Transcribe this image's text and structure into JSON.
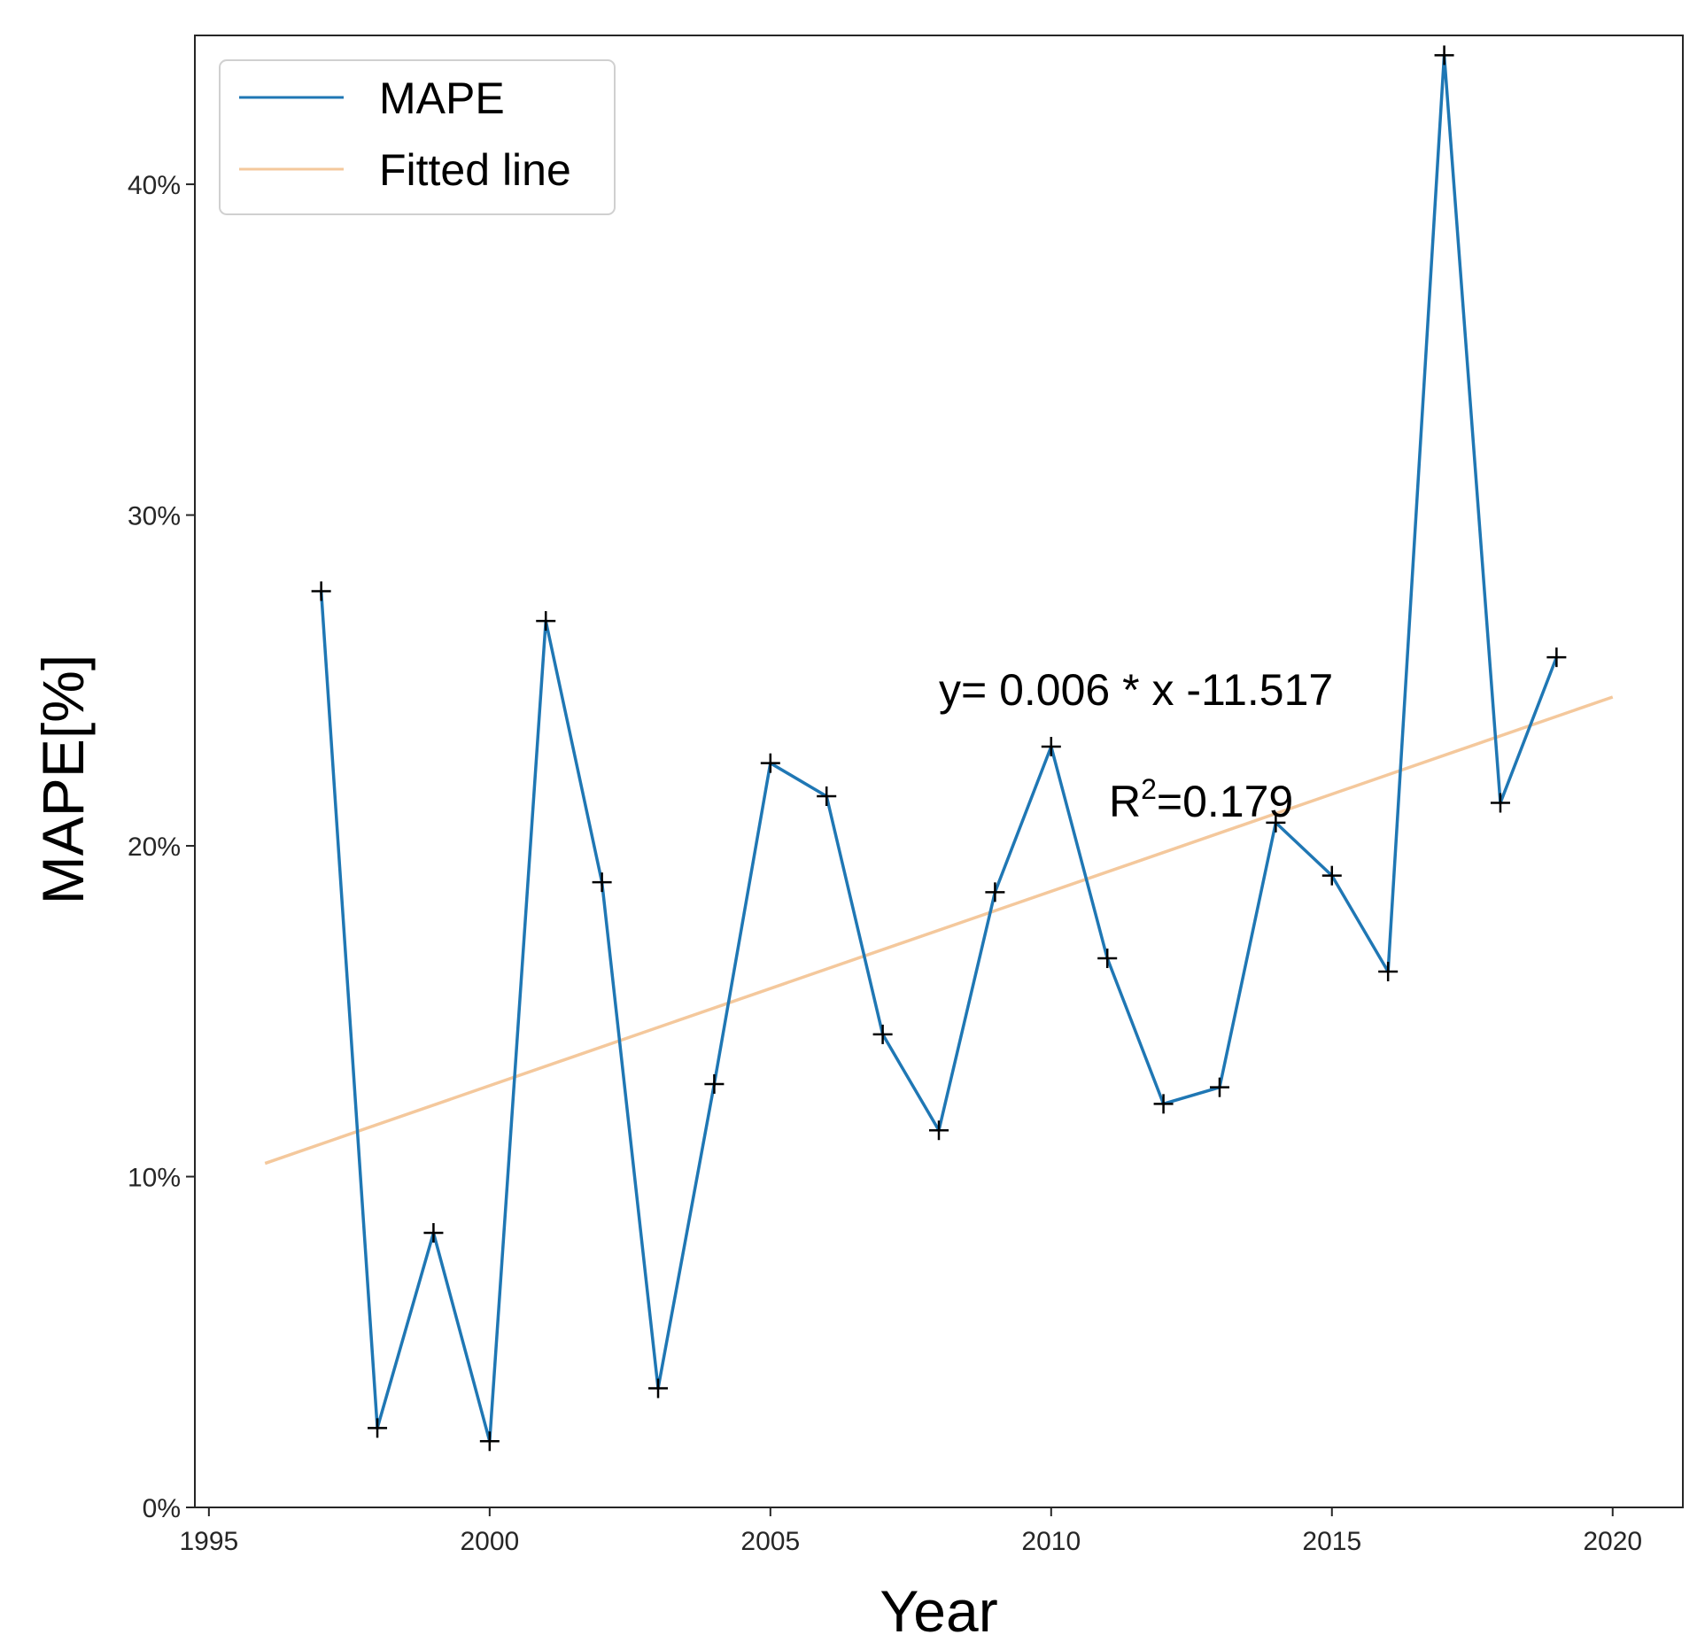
{
  "chart_data": {
    "type": "line",
    "title": "",
    "xlabel": "Year",
    "ylabel": "MAPE[%]",
    "xlim": [
      1994.75,
      2021.25
    ],
    "ylim": [
      0,
      44.5
    ],
    "x_ticks": [
      1995,
      2000,
      2005,
      2010,
      2015,
      2020
    ],
    "x_tick_labels": [
      "1995",
      "2000",
      "2005",
      "2010",
      "2015",
      "2020"
    ],
    "y_ticks": [
      0,
      10,
      20,
      30,
      40
    ],
    "y_tick_labels": [
      "0%",
      "10%",
      "20%",
      "30%",
      "40%"
    ],
    "grid": false,
    "legend_position": "top-left",
    "series": [
      {
        "name": "MAPE",
        "color": "#1f77b4",
        "marker": "+",
        "marker_color": "#000000",
        "x": [
          1997,
          1998,
          1999,
          2000,
          2001,
          2002,
          2003,
          2004,
          2005,
          2006,
          2007,
          2008,
          2009,
          2010,
          2011,
          2012,
          2013,
          2014,
          2015,
          2016,
          2017,
          2018,
          2019
        ],
        "values": [
          27.7,
          2.4,
          8.3,
          2.0,
          26.8,
          18.9,
          3.6,
          12.8,
          22.5,
          21.5,
          14.3,
          11.4,
          18.6,
          23.0,
          16.6,
          12.2,
          12.7,
          20.7,
          19.1,
          16.2,
          43.9,
          21.3,
          25.7
        ]
      },
      {
        "name": "Fitted line",
        "color": "#f4c89c",
        "x": [
          1996,
          2020
        ],
        "values": [
          10.4,
          24.5
        ]
      }
    ],
    "annotations": {
      "equation": "y= 0.006 * x -11.517",
      "r2_prefix": "R",
      "r2_sup": "2",
      "r2_value": "=0.179"
    }
  }
}
